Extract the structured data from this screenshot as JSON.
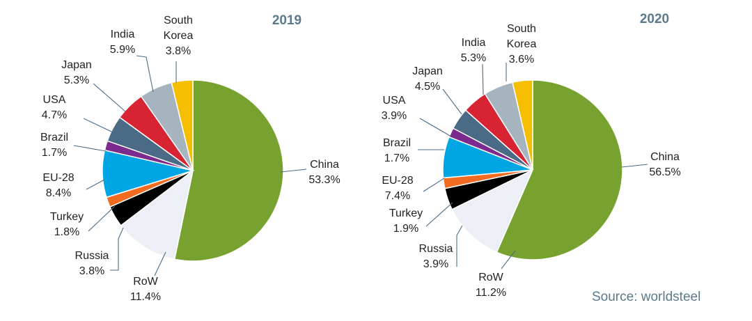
{
  "source_text": "Source: worldsteel",
  "chart_data": [
    {
      "type": "pie",
      "title": "2019",
      "unit": "%",
      "slices": [
        {
          "name": "China",
          "line1": "China",
          "line2": "",
          "value_label": "53.3%",
          "value": 53.3,
          "color": "#78a22f"
        },
        {
          "name": "RoW",
          "line1": "RoW",
          "line2": "",
          "value_label": "11.4%",
          "value": 11.4,
          "color": "#eceff6"
        },
        {
          "name": "Russia",
          "line1": "Russia",
          "line2": "",
          "value_label": "3.8%",
          "value": 3.8,
          "color": "#000000"
        },
        {
          "name": "Turkey",
          "line1": "Turkey",
          "line2": "",
          "value_label": "1.8%",
          "value": 1.8,
          "color": "#f26b21"
        },
        {
          "name": "EU-28",
          "line1": "EU-28",
          "line2": "",
          "value_label": "8.4%",
          "value": 8.4,
          "color": "#00a5e3"
        },
        {
          "name": "Brazil",
          "line1": "Brazil",
          "line2": "",
          "value_label": "1.7%",
          "value": 1.7,
          "color": "#7b2a8e"
        },
        {
          "name": "USA",
          "line1": "USA",
          "line2": "",
          "value_label": "4.7%",
          "value": 4.7,
          "color": "#4b6a85"
        },
        {
          "name": "Japan",
          "line1": "Japan",
          "line2": "",
          "value_label": "5.3%",
          "value": 5.3,
          "color": "#d72332"
        },
        {
          "name": "India",
          "line1": "India",
          "line2": "",
          "value_label": "5.9%",
          "value": 5.9,
          "color": "#a6b4bf"
        },
        {
          "name": "South Korea",
          "line1": "South",
          "line2": "Korea",
          "value_label": "3.8%",
          "value": 3.8,
          "color": "#f5be00"
        }
      ]
    },
    {
      "type": "pie",
      "title": "2020",
      "unit": "%",
      "slices": [
        {
          "name": "China",
          "line1": "China",
          "line2": "",
          "value_label": "56.5%",
          "value": 56.5,
          "color": "#78a22f"
        },
        {
          "name": "RoW",
          "line1": "RoW",
          "line2": "",
          "value_label": "11.2%",
          "value": 11.2,
          "color": "#eceff6"
        },
        {
          "name": "Russia",
          "line1": "Russia",
          "line2": "",
          "value_label": "3.9%",
          "value": 3.9,
          "color": "#000000"
        },
        {
          "name": "Turkey",
          "line1": "Turkey",
          "line2": "",
          "value_label": "1.9%",
          "value": 1.9,
          "color": "#f26b21"
        },
        {
          "name": "EU-28",
          "line1": "EU-28",
          "line2": "",
          "value_label": "7.4%",
          "value": 7.4,
          "color": "#00a5e3"
        },
        {
          "name": "Brazil",
          "line1": "Brazil",
          "line2": "",
          "value_label": "1.7%",
          "value": 1.7,
          "color": "#7b2a8e"
        },
        {
          "name": "USA",
          "line1": "USA",
          "line2": "",
          "value_label": "3.9%",
          "value": 3.9,
          "color": "#4b6a85"
        },
        {
          "name": "Japan",
          "line1": "Japan",
          "line2": "",
          "value_label": "4.5%",
          "value": 4.5,
          "color": "#d72332"
        },
        {
          "name": "India",
          "line1": "India",
          "line2": "",
          "value_label": "5.3%",
          "value": 5.3,
          "color": "#a6b4bf"
        },
        {
          "name": "South Korea",
          "line1": "South",
          "line2": "Korea",
          "value_label": "3.6%",
          "value": 3.6,
          "color": "#f5be00"
        }
      ]
    }
  ]
}
